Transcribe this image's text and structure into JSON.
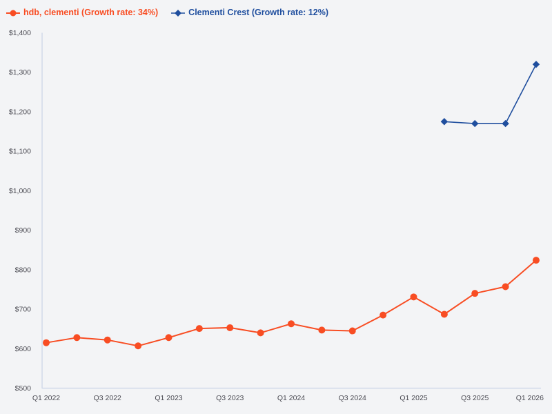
{
  "page": {
    "background": "#f3f4f6"
  },
  "legend": {
    "items": [
      {
        "label": "hdb, clementi (Growth rate: 34%)",
        "color": "#f84d23",
        "marker": "circle"
      },
      {
        "label": "Clementi Crest (Growth rate: 12%)",
        "color": "#1f4e9e",
        "marker": "diamond"
      }
    ]
  },
  "chart_data": {
    "type": "line",
    "title": "",
    "xlabel": "",
    "ylabel": "",
    "grid": false,
    "legend_position": "top-left",
    "ylim": [
      500,
      1400
    ],
    "axis_color": "#c9d3e6",
    "tick_label_color": "#4a4a52",
    "x": [
      "Q1 2022",
      "Q2 2022",
      "Q3 2022",
      "Q4 2022",
      "Q1 2023",
      "Q2 2023",
      "Q3 2023",
      "Q4 2023",
      "Q1 2024",
      "Q2 2024",
      "Q3 2024",
      "Q4 2024",
      "Q1 2025",
      "Q2 2025",
      "Q3 2025",
      "Q4 2025",
      "Q1 2026"
    ],
    "x_tick_labels": [
      "Q1 2022",
      "Q3 2022",
      "Q1 2023",
      "Q3 2023",
      "Q1 2024",
      "Q3 2024",
      "Q1 2025",
      "Q3 2025",
      "Q1 2026"
    ],
    "x_tick_indices": [
      0,
      2,
      4,
      6,
      8,
      10,
      12,
      14,
      16
    ],
    "y_ticks": [
      {
        "value": 500,
        "label": "$500"
      },
      {
        "value": 600,
        "label": "$600"
      },
      {
        "value": 700,
        "label": "$700"
      },
      {
        "value": 800,
        "label": "$800"
      },
      {
        "value": 900,
        "label": "$900"
      },
      {
        "value": 1000,
        "label": "$1,000"
      },
      {
        "value": 1100,
        "label": "$1,100"
      },
      {
        "value": 1200,
        "label": "$1,200"
      },
      {
        "value": 1300,
        "label": "$1,300"
      },
      {
        "value": 1400,
        "label": "$1,400"
      }
    ],
    "series": [
      {
        "name": "hdb, clementi",
        "growth_rate": "34%",
        "color": "#f84d23",
        "marker": "circle",
        "line_width": 2,
        "values": [
          615,
          628,
          622,
          607,
          628,
          651,
          653,
          640,
          663,
          647,
          645,
          685,
          731,
          687,
          740,
          757,
          824
        ]
      },
      {
        "name": "Clementi Crest",
        "growth_rate": "12%",
        "color": "#1f4e9e",
        "marker": "diamond",
        "line_width": 1.6,
        "values": [
          null,
          null,
          null,
          null,
          null,
          null,
          null,
          null,
          null,
          null,
          null,
          null,
          null,
          1175,
          1170,
          1170,
          1320
        ]
      }
    ]
  }
}
